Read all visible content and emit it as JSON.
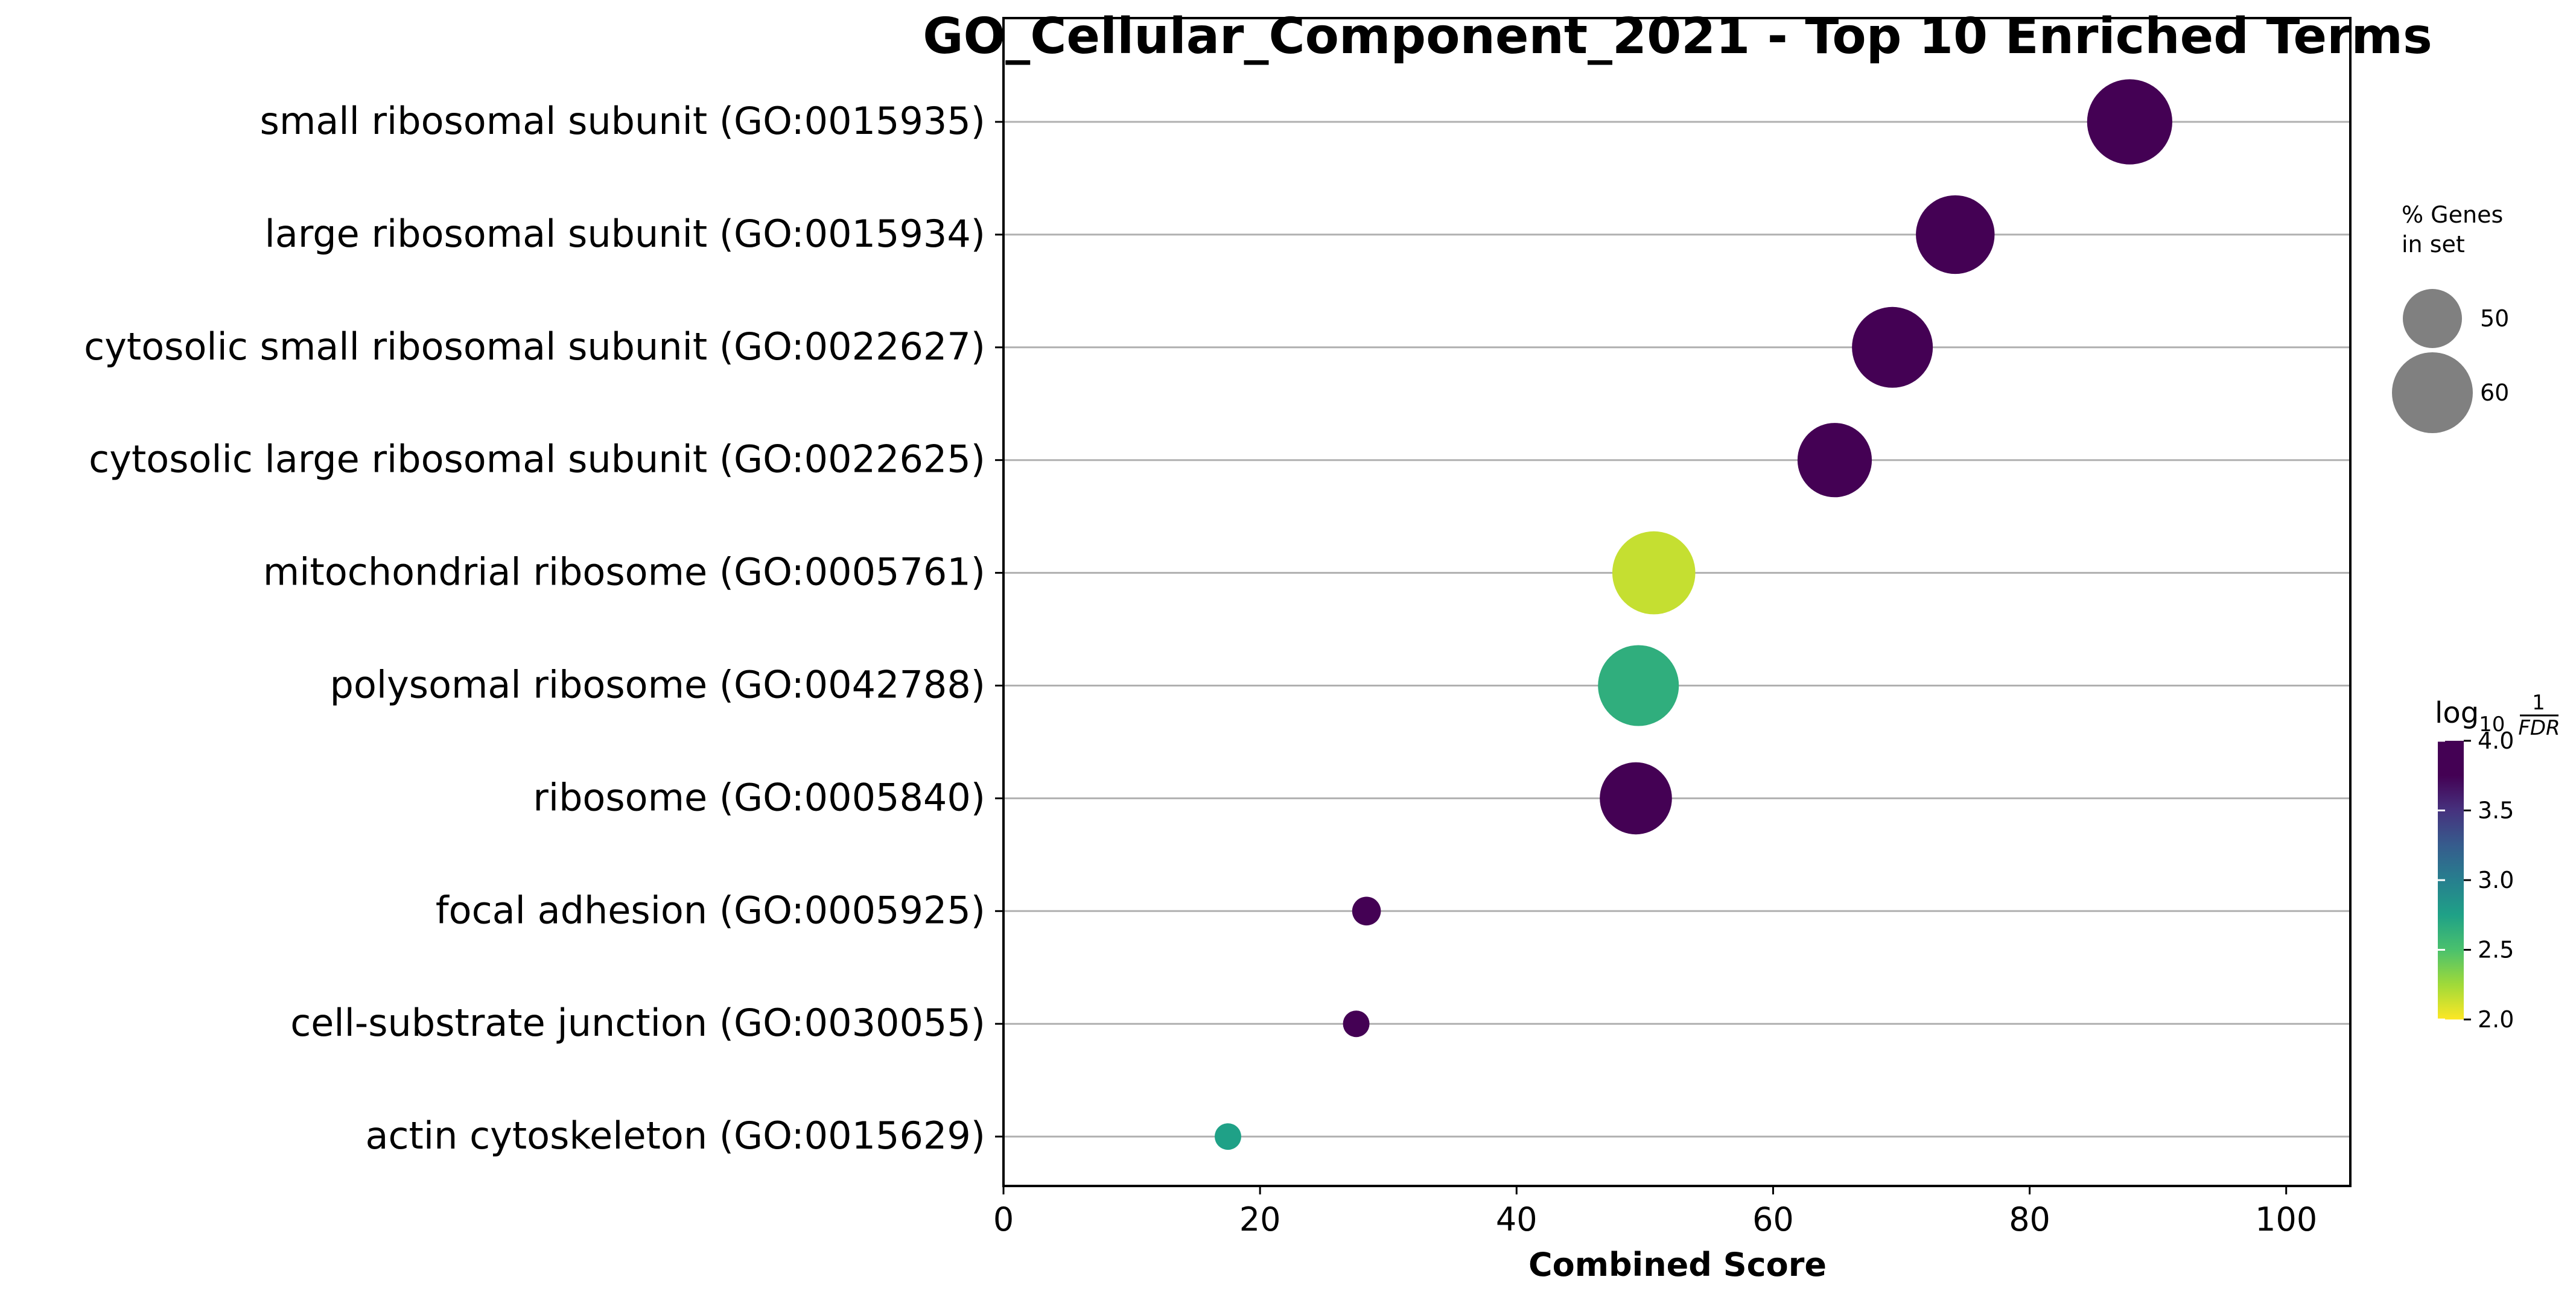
{
  "chart_data": {
    "type": "scatter",
    "title": "GO_Cellular_Component_2021 - Top 10 Enriched Terms",
    "xlabel": "Combined Score",
    "ylabel": "",
    "xlim": [
      0,
      105
    ],
    "xticks": [
      "0",
      "20",
      "40",
      "60",
      "80",
      "100"
    ],
    "grid": "horizontal",
    "categories": [
      "small ribosomal subunit (GO:0015935)",
      "large ribosomal subunit (GO:0015934)",
      "cytosolic small ribosomal subunit (GO:0022627)",
      "cytosolic large ribosomal subunit (GO:0022625)",
      "mitochondrial ribosome (GO:0005761)",
      "polysomal ribosome (GO:0042788)",
      "ribosome (GO:0005840)",
      "focal adhesion (GO:0005925)",
      "cell-substrate junction (GO:0030055)",
      "actin cytoskeleton (GO:0015629)"
    ],
    "points": [
      {
        "term": "small ribosomal subunit (GO:0015935)",
        "combined_score": 87.8,
        "percent_genes": 62,
        "log10_inv_fdr": 4.0
      },
      {
        "term": "large ribosomal subunit (GO:0015934)",
        "combined_score": 74.2,
        "percent_genes": 59,
        "log10_inv_fdr": 4.0
      },
      {
        "term": "cytosolic small ribosomal subunit (GO:0022627)",
        "combined_score": 69.3,
        "percent_genes": 60,
        "log10_inv_fdr": 4.0
      },
      {
        "term": "cytosolic large ribosomal subunit (GO:0022625)",
        "combined_score": 64.8,
        "percent_genes": 57,
        "log10_inv_fdr": 4.0
      },
      {
        "term": "mitochondrial ribosome (GO:0005761)",
        "combined_score": 50.7,
        "percent_genes": 61,
        "log10_inv_fdr": 2.3
      },
      {
        "term": "polysomal ribosome (GO:0042788)",
        "combined_score": 49.5,
        "percent_genes": 60,
        "log10_inv_fdr": 2.9
      },
      {
        "term": "ribosome (GO:0005840)",
        "combined_score": 49.3,
        "percent_genes": 56,
        "log10_inv_fdr": 4.0
      },
      {
        "term": "focal adhesion (GO:0005925)",
        "combined_score": 28.3,
        "percent_genes": 36,
        "log10_inv_fdr": 4.0
      },
      {
        "term": "cell-substrate junction (GO:0030055)",
        "combined_score": 27.5,
        "percent_genes": 35,
        "log10_inv_fdr": 4.0
      },
      {
        "term": "actin cytoskeleton (GO:0015629)",
        "combined_score": 17.5,
        "percent_genes": 35,
        "log10_inv_fdr": 3.0
      }
    ],
    "size_legend": {
      "title_line1": "% Genes",
      "title_line2": "in set",
      "entries": [
        {
          "label": "50",
          "value": 50
        },
        {
          "label": "60",
          "value": 60
        }
      ]
    },
    "colorbar": {
      "title_prefix": "log",
      "title_sub": "10",
      "title_frac_num": "1",
      "title_frac_den": "FDR",
      "range": [
        2.0,
        4.0
      ],
      "ticks": [
        "2.0",
        "2.5",
        "3.0",
        "3.5",
        "4.0"
      ],
      "colormap": "viridis"
    },
    "colors": {
      "grid": "#b0b0b0",
      "legend_marker": "#808080",
      "axis": "#000000"
    }
  }
}
